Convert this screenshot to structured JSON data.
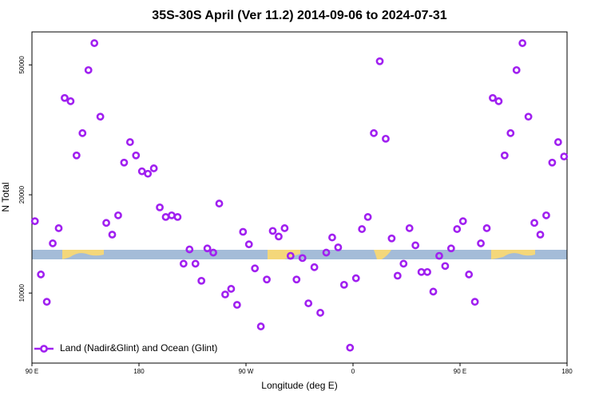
{
  "chart_data": {
    "type": "scatter",
    "title": "35S-30S April (Ver 11.2)   2014-09-06 to 2024-07-31",
    "x_label": "Longitude (deg E)",
    "y_label": "N Total",
    "x": [
      92.5,
      97.5,
      102.5,
      107.5,
      112.5,
      117.5,
      122.5,
      127.5,
      132.5,
      137.5,
      142.5,
      147.5,
      152.5,
      157.5,
      162.5,
      167.5,
      172.5,
      177.5,
      182.5,
      187.5,
      192.5,
      197.5,
      202.5,
      207.5,
      212.5,
      217.5,
      222.5,
      227.5,
      232.5,
      237.5,
      242.5,
      247.5,
      252.5,
      257.5,
      262.5,
      267.5,
      272.5,
      277.5,
      282.5,
      287.5,
      292.5,
      297.5,
      302.5,
      307.5,
      312.5,
      317.5,
      322.5,
      327.5,
      332.5,
      337.5,
      342.5,
      347.5,
      352.5,
      357.5,
      362.5,
      367.5,
      372.5,
      377.5,
      382.5,
      387.5,
      392.5,
      397.5,
      402.5,
      407.5,
      412.5,
      417.5,
      422.5,
      427.5,
      432.5,
      437.5,
      442.5,
      447.5,
      452.5,
      457.5,
      462.5,
      467.5,
      472.5,
      477.5,
      482.5,
      487.5,
      492.5,
      497.5,
      502.5,
      507.5,
      512.5,
      517.5,
      522.5,
      527.5,
      532.5,
      537.5
    ],
    "series": [
      {
        "name": "Land (Nadir&Glint) and Ocean (Glint)",
        "color": "#a020f0",
        "values": [
          16600,
          11400,
          9400,
          14200,
          15800,
          39600,
          38700,
          26400,
          30900,
          48200,
          58300,
          34700,
          16400,
          15100,
          17300,
          25100,
          29000,
          26400,
          23600,
          23200,
          24100,
          18300,
          17100,
          17300,
          17100,
          12300,
          13600,
          12300,
          10900,
          13700,
          13300,
          18800,
          9900,
          10300,
          9200,
          15400,
          14100,
          11900,
          7900,
          11000,
          15500,
          14900,
          15800,
          13000,
          11000,
          12800,
          9300,
          12000,
          8700,
          13300,
          14800,
          13800,
          10600,
          6800,
          11100,
          15700,
          17100,
          30900,
          51300,
          29700,
          14700,
          11300,
          12300,
          15800,
          14000,
          11600,
          11600,
          10100,
          13000,
          12100,
          13700,
          15700,
          16600,
          11400,
          9400,
          14200,
          15800,
          39600,
          38700,
          26400,
          30900,
          48200,
          58300,
          34700,
          16400,
          15100,
          17300,
          25100,
          29000,
          26200
        ]
      }
    ],
    "xlim": [
      90,
      540
    ],
    "xticks": [
      {
        "value": 90,
        "label": "90 E"
      },
      180,
      {
        "value": 270,
        "label": "90 W"
      },
      {
        "value": 360,
        "label": "0"
      },
      {
        "value": 450,
        "label": "90 E"
      },
      {
        "value": 540,
        "label": "180"
      }
    ],
    "ylim": [
      6100,
      63100
    ],
    "yticks": [
      10000,
      20000,
      50000
    ],
    "log_y": true,
    "legend": "bottom-left"
  }
}
